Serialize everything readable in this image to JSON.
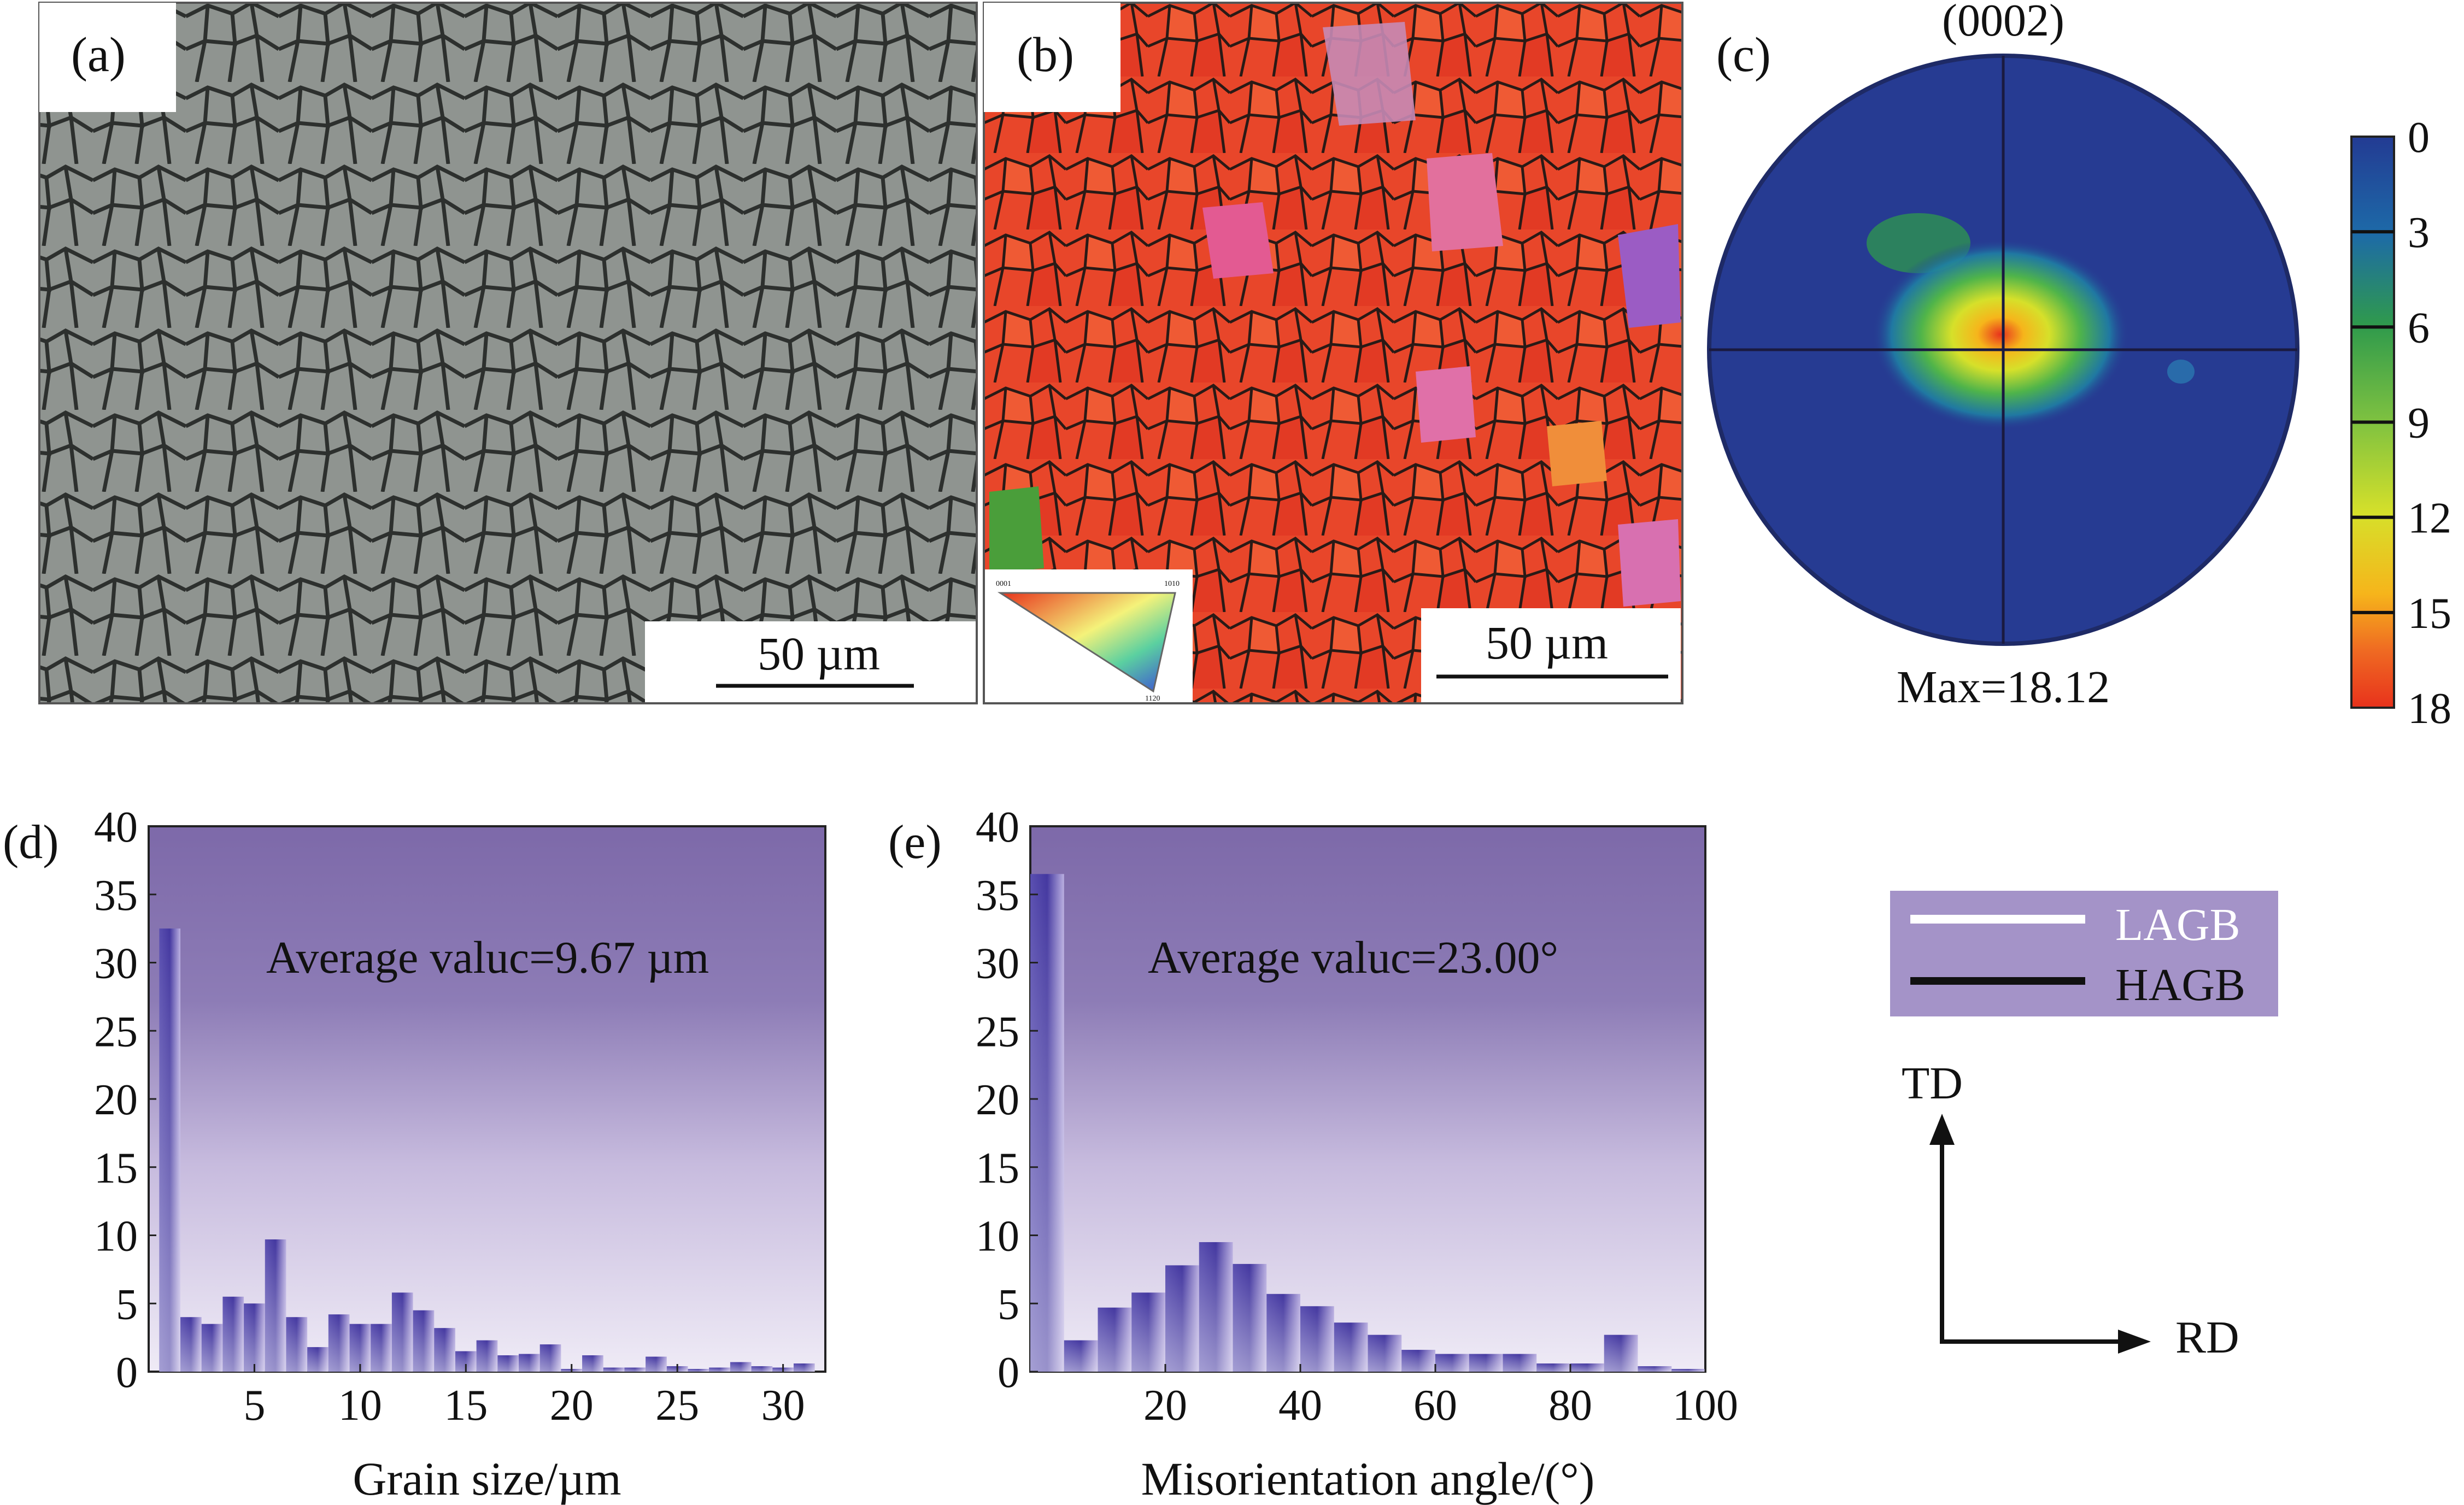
{
  "colors": {
    "histogram_top": "#7f6aa8",
    "histogram_bottom": "#ece7f4",
    "bar_dark": "#4a3ea0",
    "bar_light": "#cdc4e6",
    "pole_background": "#263b92",
    "legend_box": "#a493c8"
  },
  "panels": {
    "a": {
      "label": "(a)",
      "scale_bar": "50 µm",
      "image_description": "optical micrograph of equiaxed grains"
    },
    "b": {
      "label": "(b)",
      "scale_bar": "50 µm",
      "image_description": "EBSD inverse pole figure map",
      "ipf_key_labels": [
        "0001",
        "1010",
        "1120"
      ]
    },
    "c": {
      "label": "(c)",
      "title": "(0002)",
      "max_text": "Max=18.12",
      "colorbar_ticks": [
        "0",
        "3",
        "6",
        "9",
        "12",
        "15",
        "18"
      ],
      "colorbar_colors": [
        "#233b93",
        "#1d6aa8",
        "#2f9a4c",
        "#7fc240",
        "#d6e02a",
        "#f6b51b",
        "#ef6a22",
        "#e8321c"
      ]
    },
    "legend": {
      "items": [
        {
          "label": "LAGB",
          "color": "#ffffff"
        },
        {
          "label": "HAGB",
          "color": "#111111"
        }
      ]
    },
    "axes_diagram": {
      "vertical": "TD",
      "horizontal": "RD"
    }
  },
  "chart_data": [
    {
      "panel_label": "(d)",
      "type": "bar",
      "title": "",
      "annotation": "Average valuc=9.67 µm",
      "xlabel": "Grain size/µm",
      "ylabel": "",
      "xlim": [
        0,
        32
      ],
      "ylim": [
        0,
        40
      ],
      "bin_width": 1,
      "x_ticks": [
        5,
        10,
        15,
        20,
        25,
        30
      ],
      "y_ticks": [
        0,
        5,
        10,
        15,
        20,
        25,
        30,
        35,
        40
      ],
      "x": [
        1,
        2,
        3,
        4,
        5,
        6,
        7,
        8,
        9,
        10,
        11,
        12,
        13,
        14,
        15,
        16,
        17,
        18,
        19,
        20,
        21,
        22,
        23,
        24,
        25,
        26,
        27,
        28,
        29,
        30,
        31
      ],
      "values": [
        32.5,
        4,
        3.5,
        5.5,
        5,
        9.7,
        4,
        1.8,
        4.2,
        3.5,
        3.5,
        5.8,
        4.5,
        3.2,
        1.5,
        2.3,
        1.2,
        1.3,
        2,
        0.2,
        1.2,
        0.3,
        0.3,
        1.1,
        0.4,
        0.2,
        0.3,
        0.7,
        0.4,
        0.3,
        0.6
      ]
    },
    {
      "panel_label": "(e)",
      "type": "bar",
      "title": "",
      "annotation": "Average valuc=23.00°",
      "xlabel": "Misorientation angle/(°)",
      "ylabel": "",
      "xlim": [
        0,
        100
      ],
      "ylim": [
        0,
        40
      ],
      "bin_width": 5,
      "x_ticks": [
        20,
        40,
        60,
        80,
        100
      ],
      "y_ticks": [
        0,
        5,
        10,
        15,
        20,
        25,
        30,
        35,
        40
      ],
      "x": [
        2.5,
        7.5,
        12.5,
        17.5,
        22.5,
        27.5,
        32.5,
        37.5,
        42.5,
        47.5,
        52.5,
        57.5,
        62.5,
        67.5,
        72.5,
        77.5,
        82.5,
        87.5,
        92.5,
        97.5
      ],
      "values": [
        36.5,
        2.3,
        4.7,
        5.8,
        7.8,
        9.5,
        7.9,
        5.7,
        4.8,
        3.6,
        2.7,
        1.6,
        1.3,
        1.3,
        1.3,
        0.6,
        0.6,
        2.7,
        0.4,
        0.2
      ]
    }
  ]
}
